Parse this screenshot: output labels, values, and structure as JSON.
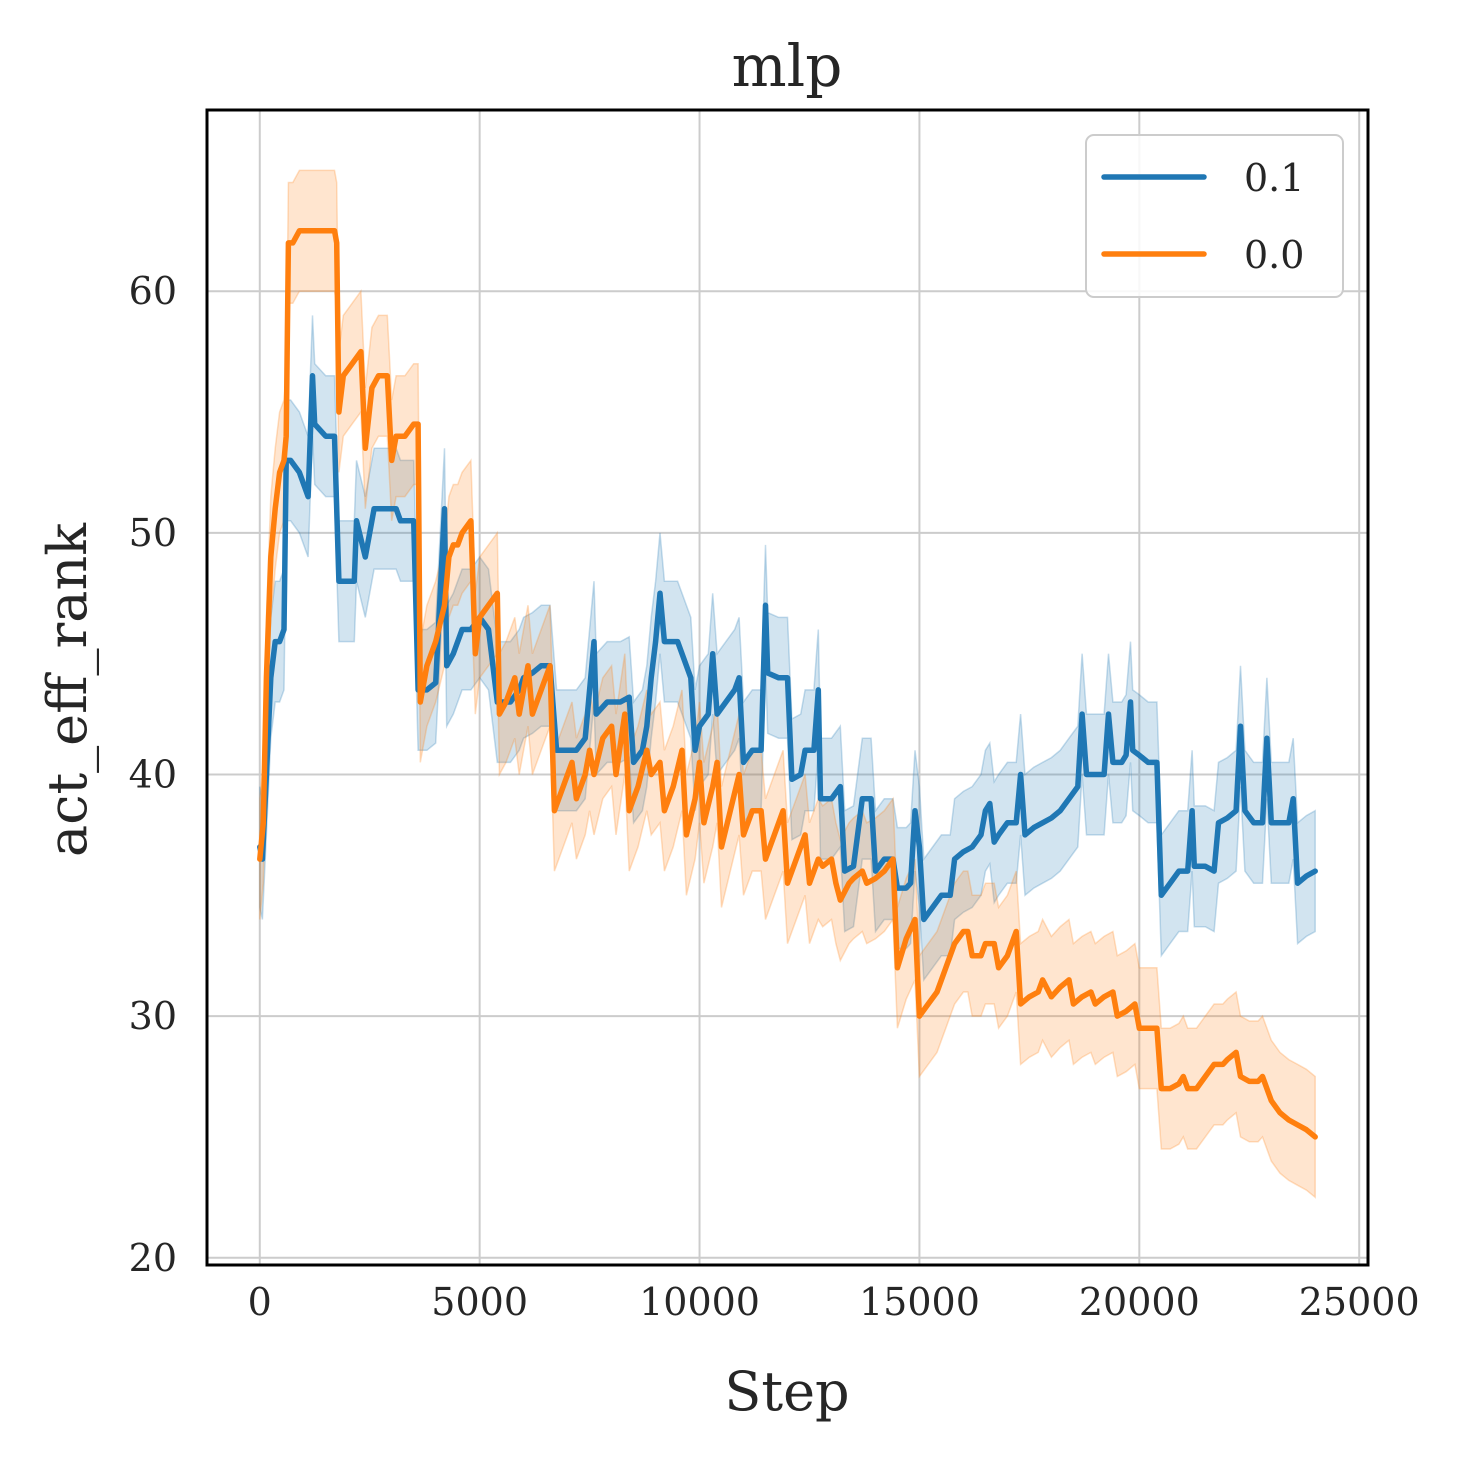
{
  "chart_data": {
    "type": "line",
    "title": "mlp",
    "xlabel": "Step",
    "ylabel": "act_eff_rank",
    "xlim": [
      -1200,
      25200
    ],
    "ylim": [
      19.7,
      67.5
    ],
    "xticks": [
      0,
      5000,
      10000,
      15000,
      20000,
      25000
    ],
    "xtick_labels": [
      "0",
      "5000",
      "10000",
      "15000",
      "20000",
      "25000"
    ],
    "yticks": [
      20,
      30,
      40,
      50,
      60
    ],
    "ytick_labels": [
      "20",
      "30",
      "40",
      "50",
      "60"
    ],
    "grid": true,
    "legend": {
      "position": "top-right"
    },
    "series": [
      {
        "name": "0.1",
        "color": "#1f77b4",
        "band": 2.5,
        "points": [
          [
            0,
            37
          ],
          [
            60,
            36.5
          ],
          [
            150,
            40
          ],
          [
            250,
            44
          ],
          [
            350,
            45.5
          ],
          [
            450,
            45.5
          ],
          [
            550,
            46
          ],
          [
            600,
            53
          ],
          [
            700,
            53
          ],
          [
            900,
            52.5
          ],
          [
            1100,
            51.5
          ],
          [
            1200,
            56.5
          ],
          [
            1250,
            54.5
          ],
          [
            1500,
            54
          ],
          [
            1700,
            54
          ],
          [
            1800,
            48
          ],
          [
            2000,
            48
          ],
          [
            2150,
            48
          ],
          [
            2200,
            50.5
          ],
          [
            2400,
            49
          ],
          [
            2600,
            51
          ],
          [
            2800,
            51
          ],
          [
            3000,
            51
          ],
          [
            3100,
            51
          ],
          [
            3200,
            50.5
          ],
          [
            3400,
            50.5
          ],
          [
            3500,
            50.5
          ],
          [
            3600,
            43.5
          ],
          [
            3800,
            43.5
          ],
          [
            4000,
            43.8
          ],
          [
            4200,
            51
          ],
          [
            4250,
            44.5
          ],
          [
            4400,
            45
          ],
          [
            4600,
            46
          ],
          [
            4800,
            46
          ],
          [
            5000,
            46.5
          ],
          [
            5200,
            46
          ],
          [
            5400,
            43
          ],
          [
            5700,
            43
          ],
          [
            5900,
            43.5
          ],
          [
            6000,
            44
          ],
          [
            6200,
            44.2
          ],
          [
            6400,
            44.5
          ],
          [
            6600,
            44.5
          ],
          [
            6750,
            41
          ],
          [
            7000,
            41
          ],
          [
            7200,
            41
          ],
          [
            7400,
            41.5
          ],
          [
            7600,
            45.5
          ],
          [
            7650,
            42.5
          ],
          [
            7900,
            43
          ],
          [
            8200,
            43
          ],
          [
            8400,
            43.2
          ],
          [
            8500,
            40.5
          ],
          [
            8700,
            41
          ],
          [
            8800,
            42
          ],
          [
            8900,
            44
          ],
          [
            9000,
            45.5
          ],
          [
            9100,
            47.5
          ],
          [
            9200,
            45.5
          ],
          [
            9500,
            45.5
          ],
          [
            9800,
            44
          ],
          [
            9900,
            41
          ],
          [
            10000,
            42
          ],
          [
            10200,
            42.5
          ],
          [
            10300,
            45
          ],
          [
            10400,
            42.5
          ],
          [
            10600,
            43
          ],
          [
            10800,
            43.5
          ],
          [
            10900,
            44
          ],
          [
            11000,
            40.5
          ],
          [
            11200,
            41
          ],
          [
            11400,
            41
          ],
          [
            11500,
            47
          ],
          [
            11550,
            44.2
          ],
          [
            11800,
            44
          ],
          [
            12000,
            44
          ],
          [
            12100,
            39.8
          ],
          [
            12300,
            40
          ],
          [
            12400,
            41
          ],
          [
            12600,
            41
          ],
          [
            12700,
            43.5
          ],
          [
            12750,
            39
          ],
          [
            13000,
            39
          ],
          [
            13200,
            39.5
          ],
          [
            13300,
            36
          ],
          [
            13500,
            36.2
          ],
          [
            13700,
            39
          ],
          [
            13900,
            39
          ],
          [
            14000,
            36
          ],
          [
            14200,
            36.5
          ],
          [
            14400,
            36.5
          ],
          [
            14500,
            35.3
          ],
          [
            14700,
            35.3
          ],
          [
            14800,
            35.5
          ],
          [
            14900,
            38.5
          ],
          [
            15000,
            37
          ],
          [
            15100,
            34
          ],
          [
            15300,
            34.5
          ],
          [
            15500,
            35
          ],
          [
            15700,
            35
          ],
          [
            15800,
            36.5
          ],
          [
            16000,
            36.8
          ],
          [
            16200,
            37
          ],
          [
            16400,
            37.5
          ],
          [
            16500,
            38.5
          ],
          [
            16600,
            38.8
          ],
          [
            16700,
            37.2
          ],
          [
            16800,
            37.5
          ],
          [
            17000,
            38
          ],
          [
            17200,
            38
          ],
          [
            17300,
            40
          ],
          [
            17400,
            37.5
          ],
          [
            17600,
            37.8
          ],
          [
            17800,
            38
          ],
          [
            18000,
            38.2
          ],
          [
            18200,
            38.5
          ],
          [
            18400,
            39
          ],
          [
            18600,
            39.5
          ],
          [
            18700,
            42.5
          ],
          [
            18800,
            40
          ],
          [
            19000,
            40
          ],
          [
            19200,
            40
          ],
          [
            19300,
            42.5
          ],
          [
            19400,
            40.5
          ],
          [
            19600,
            40.5
          ],
          [
            19700,
            40.8
          ],
          [
            19800,
            43
          ],
          [
            19850,
            41
          ],
          [
            20000,
            40.8
          ],
          [
            20200,
            40.5
          ],
          [
            20400,
            40.5
          ],
          [
            20500,
            35
          ],
          [
            20700,
            35.5
          ],
          [
            20900,
            36
          ],
          [
            21100,
            36
          ],
          [
            21200,
            38.5
          ],
          [
            21250,
            36.2
          ],
          [
            21500,
            36.2
          ],
          [
            21700,
            36
          ],
          [
            21800,
            38
          ],
          [
            22000,
            38.2
          ],
          [
            22200,
            38.5
          ],
          [
            22300,
            42
          ],
          [
            22400,
            38.5
          ],
          [
            22600,
            38
          ],
          [
            22800,
            38
          ],
          [
            22900,
            41.5
          ],
          [
            23000,
            38
          ],
          [
            23200,
            38
          ],
          [
            23400,
            38
          ],
          [
            23500,
            39
          ],
          [
            23600,
            35.5
          ],
          [
            23800,
            35.8
          ],
          [
            24000,
            36
          ]
        ]
      },
      {
        "name": "0.0",
        "color": "#ff7f0e",
        "band": 2.5,
        "points": [
          [
            0,
            36.5
          ],
          [
            80,
            38
          ],
          [
            150,
            44
          ],
          [
            250,
            49
          ],
          [
            350,
            51
          ],
          [
            450,
            52.5
          ],
          [
            550,
            53
          ],
          [
            600,
            54
          ],
          [
            650,
            62
          ],
          [
            750,
            62
          ],
          [
            900,
            62.5
          ],
          [
            1100,
            62.5
          ],
          [
            1300,
            62.5
          ],
          [
            1500,
            62.5
          ],
          [
            1700,
            62.5
          ],
          [
            1750,
            62
          ],
          [
            1800,
            55
          ],
          [
            1900,
            56.5
          ],
          [
            2100,
            57
          ],
          [
            2300,
            57.5
          ],
          [
            2400,
            53.5
          ],
          [
            2550,
            56
          ],
          [
            2700,
            56.5
          ],
          [
            2900,
            56.5
          ],
          [
            3000,
            53
          ],
          [
            3100,
            54
          ],
          [
            3300,
            54
          ],
          [
            3500,
            54.5
          ],
          [
            3600,
            54.5
          ],
          [
            3650,
            43
          ],
          [
            3800,
            44.5
          ],
          [
            4000,
            45.5
          ],
          [
            4200,
            47
          ],
          [
            4300,
            49
          ],
          [
            4400,
            49.5
          ],
          [
            4500,
            49.5
          ],
          [
            4600,
            50
          ],
          [
            4800,
            50.5
          ],
          [
            4900,
            45
          ],
          [
            5000,
            46.5
          ],
          [
            5200,
            47
          ],
          [
            5400,
            47.5
          ],
          [
            5450,
            42.5
          ],
          [
            5600,
            43
          ],
          [
            5800,
            44
          ],
          [
            5900,
            42.5
          ],
          [
            6000,
            43.5
          ],
          [
            6100,
            44.5
          ],
          [
            6200,
            42.5
          ],
          [
            6400,
            43.5
          ],
          [
            6600,
            44.5
          ],
          [
            6700,
            38.5
          ],
          [
            6900,
            39.5
          ],
          [
            7100,
            40.5
          ],
          [
            7200,
            39
          ],
          [
            7400,
            40
          ],
          [
            7500,
            41
          ],
          [
            7600,
            40
          ],
          [
            7800,
            41.5
          ],
          [
            8000,
            42
          ],
          [
            8100,
            40
          ],
          [
            8300,
            42.5
          ],
          [
            8400,
            38.5
          ],
          [
            8600,
            39.5
          ],
          [
            8800,
            41
          ],
          [
            8900,
            40
          ],
          [
            9100,
            40.5
          ],
          [
            9200,
            38.5
          ],
          [
            9400,
            39.5
          ],
          [
            9600,
            41
          ],
          [
            9700,
            37.5
          ],
          [
            9900,
            39
          ],
          [
            10000,
            40.5
          ],
          [
            10100,
            38
          ],
          [
            10300,
            39.5
          ],
          [
            10400,
            40.5
          ],
          [
            10500,
            37
          ],
          [
            10700,
            38.5
          ],
          [
            10900,
            40
          ],
          [
            11000,
            37.5
          ],
          [
            11200,
            38.5
          ],
          [
            11400,
            38.5
          ],
          [
            11500,
            36.5
          ],
          [
            11700,
            37.5
          ],
          [
            11900,
            38.5
          ],
          [
            12000,
            35.5
          ],
          [
            12200,
            36.5
          ],
          [
            12400,
            37.5
          ],
          [
            12500,
            35.5
          ],
          [
            12700,
            36.5
          ],
          [
            12800,
            36.2
          ],
          [
            13000,
            36.5
          ],
          [
            13100,
            35.5
          ],
          [
            13200,
            34.8
          ],
          [
            13400,
            35.5
          ],
          [
            13500,
            35.7
          ],
          [
            13700,
            36
          ],
          [
            13800,
            35.5
          ],
          [
            14000,
            35.7
          ],
          [
            14200,
            36
          ],
          [
            14400,
            36.5
          ],
          [
            14500,
            32
          ],
          [
            14700,
            33.2
          ],
          [
            14900,
            34
          ],
          [
            15000,
            30
          ],
          [
            15200,
            30.5
          ],
          [
            15400,
            31
          ],
          [
            15500,
            31.5
          ],
          [
            15600,
            32
          ],
          [
            15800,
            33
          ],
          [
            16000,
            33.5
          ],
          [
            16100,
            33.5
          ],
          [
            16200,
            32.5
          ],
          [
            16400,
            32.5
          ],
          [
            16500,
            33
          ],
          [
            16700,
            33
          ],
          [
            16800,
            32
          ],
          [
            17000,
            32.5
          ],
          [
            17200,
            33.5
          ],
          [
            17300,
            30.5
          ],
          [
            17500,
            30.8
          ],
          [
            17700,
            31
          ],
          [
            17800,
            31.5
          ],
          [
            18000,
            30.8
          ],
          [
            18200,
            31.2
          ],
          [
            18400,
            31.5
          ],
          [
            18500,
            30.5
          ],
          [
            18700,
            30.8
          ],
          [
            18900,
            31
          ],
          [
            19000,
            30.5
          ],
          [
            19200,
            30.8
          ],
          [
            19400,
            31
          ],
          [
            19500,
            30
          ],
          [
            19700,
            30.2
          ],
          [
            19900,
            30.5
          ],
          [
            20000,
            29.5
          ],
          [
            20200,
            29.5
          ],
          [
            20400,
            29.5
          ],
          [
            20500,
            27
          ],
          [
            20700,
            27
          ],
          [
            20900,
            27.2
          ],
          [
            21000,
            27.5
          ],
          [
            21100,
            27
          ],
          [
            21300,
            27
          ],
          [
            21500,
            27.5
          ],
          [
            21700,
            28
          ],
          [
            21900,
            28
          ],
          [
            22000,
            28.2
          ],
          [
            22200,
            28.5
          ],
          [
            22300,
            27.5
          ],
          [
            22500,
            27.3
          ],
          [
            22700,
            27.3
          ],
          [
            22800,
            27.5
          ],
          [
            23000,
            26.5
          ],
          [
            23200,
            26
          ],
          [
            23400,
            25.7
          ],
          [
            23600,
            25.5
          ],
          [
            23800,
            25.3
          ],
          [
            24000,
            25
          ]
        ]
      }
    ]
  }
}
